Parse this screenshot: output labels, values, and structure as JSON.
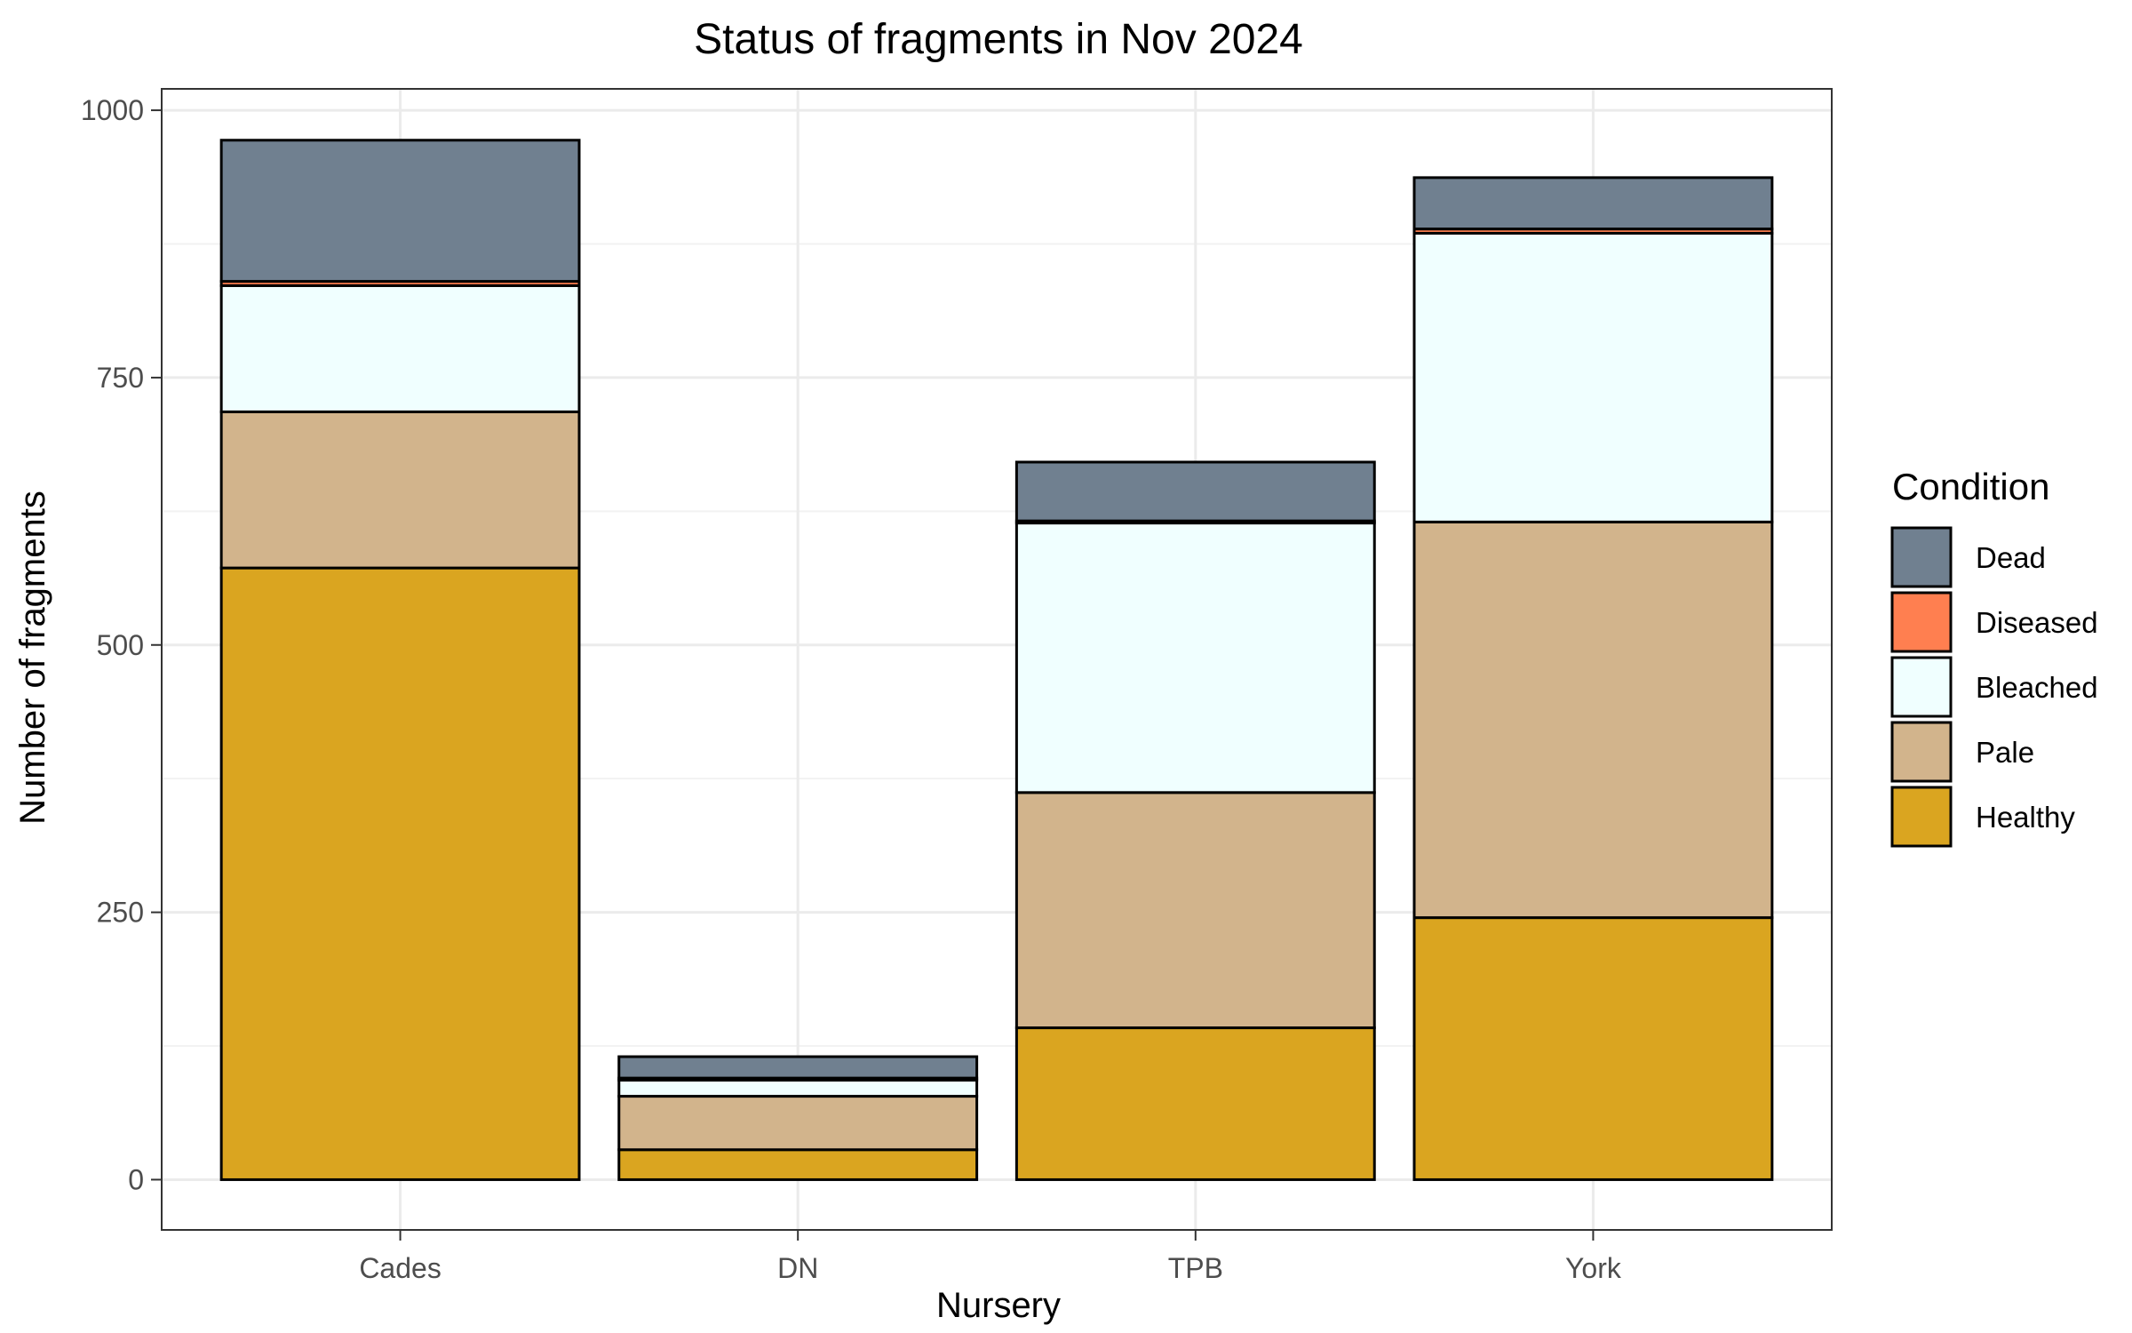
{
  "chart_data": {
    "type": "bar",
    "stacked": true,
    "title": "Status of fragments in Nov 2024",
    "xlabel": "Nursery",
    "ylabel": "Number of fragments",
    "categories": [
      "Cades",
      "DN",
      "TPB",
      "York"
    ],
    "ylim": [
      -47,
      1020
    ],
    "yticks": [
      0,
      250,
      500,
      750,
      1000
    ],
    "grid": true,
    "legend_title": "Condition",
    "legend_position": "right",
    "stack_order": [
      "Healthy",
      "Pale",
      "Bleached",
      "Diseased",
      "Dead"
    ],
    "series": [
      {
        "name": "Dead",
        "color": "#708090",
        "values": [
          132,
          20,
          55,
          48
        ]
      },
      {
        "name": "Diseased",
        "color": "#FF7F50",
        "values": [
          4,
          2,
          2,
          4
        ]
      },
      {
        "name": "Bleached",
        "color": "#F0FFFF",
        "values": [
          118,
          15,
          252,
          270
        ]
      },
      {
        "name": "Pale",
        "color": "#D2B48C",
        "values": [
          146,
          50,
          220,
          370
        ]
      },
      {
        "name": "Healthy",
        "color": "#DAA520",
        "values": [
          572,
          28,
          142,
          245
        ]
      }
    ]
  }
}
